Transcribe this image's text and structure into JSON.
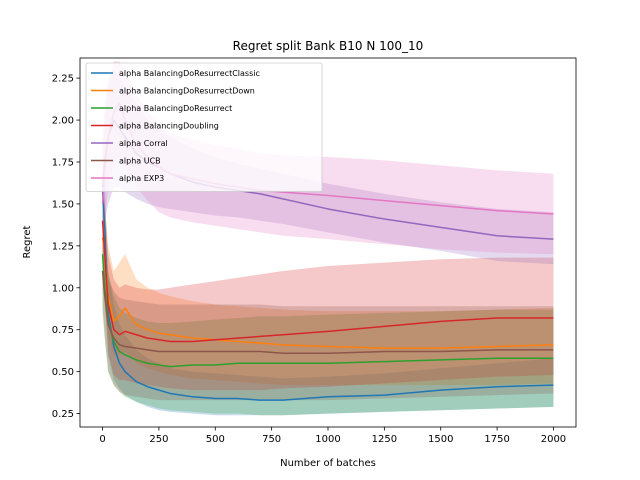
{
  "chart_data": {
    "type": "line",
    "title": "Regret split Bank B10 N 100_10",
    "xlabel": "Number of batches",
    "ylabel": "Regret",
    "xlim": [
      -100,
      2100
    ],
    "ylim": [
      0.17,
      2.37
    ],
    "xticks": [
      0,
      250,
      500,
      750,
      1000,
      1250,
      1500,
      1750,
      2000
    ],
    "yticks": [
      0.25,
      0.5,
      0.75,
      1.0,
      1.25,
      1.5,
      1.75,
      2.0,
      2.25
    ],
    "ytick_labels": [
      "0.25",
      "0.50",
      "0.75",
      "1.00",
      "1.25",
      "1.50",
      "1.75",
      "2.00",
      "2.25"
    ],
    "grid": false,
    "legend_position": "top-left",
    "x": [
      0,
      10,
      25,
      50,
      75,
      100,
      150,
      200,
      250,
      300,
      400,
      500,
      600,
      700,
      800,
      1000,
      1250,
      1500,
      1750,
      2000
    ],
    "series": [
      {
        "name": "alpha BalancingDoResurrectClassic",
        "color": "#1f77b4",
        "values": [
          1.58,
          1.35,
          0.85,
          0.65,
          0.55,
          0.5,
          0.44,
          0.41,
          0.39,
          0.37,
          0.35,
          0.34,
          0.34,
          0.33,
          0.33,
          0.35,
          0.36,
          0.39,
          0.41,
          0.42
        ],
        "lower": [
          1.3,
          1.0,
          0.6,
          0.45,
          0.4,
          0.36,
          0.32,
          0.29,
          0.27,
          0.26,
          0.25,
          0.24,
          0.24,
          0.24,
          0.24,
          0.25,
          0.26,
          0.27,
          0.28,
          0.29
        ],
        "upper": [
          1.8,
          1.6,
          1.1,
          0.9,
          0.78,
          0.72,
          0.63,
          0.58,
          0.55,
          0.52,
          0.5,
          0.49,
          0.48,
          0.47,
          0.46,
          0.47,
          0.49,
          0.52,
          0.55,
          0.58
        ]
      },
      {
        "name": "alpha BalancingDoResurrectDown",
        "color": "#ff7f0e",
        "values": [
          1.3,
          1.2,
          0.95,
          0.8,
          0.83,
          0.88,
          0.78,
          0.75,
          0.73,
          0.72,
          0.7,
          0.69,
          0.68,
          0.67,
          0.66,
          0.65,
          0.64,
          0.64,
          0.65,
          0.66
        ],
        "lower": [
          1.0,
          0.9,
          0.7,
          0.6,
          0.6,
          0.62,
          0.55,
          0.52,
          0.5,
          0.48,
          0.46,
          0.45,
          0.44,
          0.43,
          0.42,
          0.42,
          0.42,
          0.42,
          0.42,
          0.43
        ],
        "upper": [
          1.6,
          1.5,
          1.25,
          1.1,
          1.15,
          1.2,
          1.05,
          1.0,
          0.97,
          0.95,
          0.92,
          0.9,
          0.89,
          0.88,
          0.87,
          0.86,
          0.86,
          0.86,
          0.87,
          0.88
        ]
      },
      {
        "name": "alpha BalancingDoResurrect",
        "color": "#2ca02c",
        "values": [
          1.2,
          1.0,
          0.8,
          0.68,
          0.62,
          0.6,
          0.57,
          0.55,
          0.54,
          0.53,
          0.54,
          0.54,
          0.55,
          0.55,
          0.55,
          0.55,
          0.56,
          0.57,
          0.58,
          0.58
        ],
        "lower": [
          0.9,
          0.7,
          0.5,
          0.42,
          0.38,
          0.35,
          0.32,
          0.3,
          0.28,
          0.27,
          0.26,
          0.25,
          0.25,
          0.24,
          0.24,
          0.25,
          0.26,
          0.27,
          0.28,
          0.29
        ],
        "upper": [
          1.5,
          1.3,
          1.1,
          0.95,
          0.88,
          0.85,
          0.82,
          0.8,
          0.79,
          0.79,
          0.8,
          0.81,
          0.82,
          0.83,
          0.83,
          0.84,
          0.85,
          0.86,
          0.87,
          0.87
        ]
      },
      {
        "name": "alpha BalancingDoubling",
        "color": "#d62728",
        "values": [
          1.4,
          1.2,
          0.9,
          0.75,
          0.72,
          0.74,
          0.72,
          0.7,
          0.69,
          0.68,
          0.68,
          0.69,
          0.7,
          0.71,
          0.72,
          0.74,
          0.77,
          0.8,
          0.82,
          0.82
        ],
        "lower": [
          1.1,
          0.9,
          0.6,
          0.48,
          0.45,
          0.45,
          0.43,
          0.42,
          0.41,
          0.4,
          0.39,
          0.39,
          0.39,
          0.39,
          0.4,
          0.41,
          0.43,
          0.45,
          0.47,
          0.48
        ],
        "upper": [
          1.7,
          1.5,
          1.2,
          1.05,
          1.0,
          1.02,
          1.0,
          0.99,
          0.99,
          1.0,
          1.02,
          1.04,
          1.06,
          1.08,
          1.1,
          1.13,
          1.15,
          1.17,
          1.18,
          1.18
        ]
      },
      {
        "name": "alpha Corral",
        "color": "#9467bd",
        "values": [
          1.6,
          1.75,
          1.9,
          2.0,
          1.95,
          1.9,
          1.8,
          1.75,
          1.72,
          1.68,
          1.63,
          1.6,
          1.58,
          1.56,
          1.53,
          1.47,
          1.41,
          1.36,
          1.31,
          1.29
        ],
        "lower": [
          1.3,
          1.4,
          1.5,
          1.6,
          1.6,
          1.57,
          1.53,
          1.5,
          1.48,
          1.47,
          1.45,
          1.43,
          1.42,
          1.4,
          1.38,
          1.33,
          1.27,
          1.22,
          1.16,
          1.14
        ],
        "upper": [
          1.9,
          2.1,
          2.25,
          2.3,
          2.25,
          2.2,
          2.1,
          2.0,
          1.95,
          1.9,
          1.83,
          1.78,
          1.74,
          1.71,
          1.68,
          1.62,
          1.56,
          1.51,
          1.47,
          1.45
        ]
      },
      {
        "name": "alpha UCB",
        "color": "#8c564b",
        "values": [
          1.1,
          0.95,
          0.78,
          0.7,
          0.66,
          0.65,
          0.64,
          0.63,
          0.62,
          0.62,
          0.62,
          0.62,
          0.62,
          0.62,
          0.61,
          0.61,
          0.62,
          0.62,
          0.63,
          0.63
        ],
        "lower": [
          0.85,
          0.7,
          0.5,
          0.42,
          0.38,
          0.36,
          0.35,
          0.34,
          0.33,
          0.33,
          0.33,
          0.33,
          0.33,
          0.33,
          0.33,
          0.33,
          0.34,
          0.35,
          0.36,
          0.37
        ],
        "upper": [
          1.35,
          1.2,
          1.05,
          0.98,
          0.94,
          0.93,
          0.92,
          0.91,
          0.9,
          0.9,
          0.9,
          0.9,
          0.9,
          0.9,
          0.89,
          0.89,
          0.89,
          0.89,
          0.89,
          0.89
        ]
      },
      {
        "name": "alpha EXP3",
        "color": "#e377c2",
        "values": [
          1.5,
          1.7,
          1.9,
          2.05,
          2.1,
          2.0,
          1.85,
          1.78,
          1.72,
          1.68,
          1.65,
          1.62,
          1.6,
          1.58,
          1.57,
          1.55,
          1.52,
          1.49,
          1.46,
          1.44
        ],
        "lower": [
          1.2,
          1.4,
          1.6,
          1.75,
          1.78,
          1.72,
          1.6,
          1.52,
          1.45,
          1.42,
          1.39,
          1.37,
          1.35,
          1.33,
          1.31,
          1.29,
          1.26,
          1.23,
          1.21,
          1.2
        ],
        "upper": [
          1.8,
          2.0,
          2.2,
          2.35,
          2.35,
          2.3,
          2.15,
          2.05,
          1.98,
          1.92,
          1.88,
          1.85,
          1.83,
          1.8,
          1.79,
          1.78,
          1.76,
          1.73,
          1.7,
          1.68
        ]
      }
    ]
  }
}
